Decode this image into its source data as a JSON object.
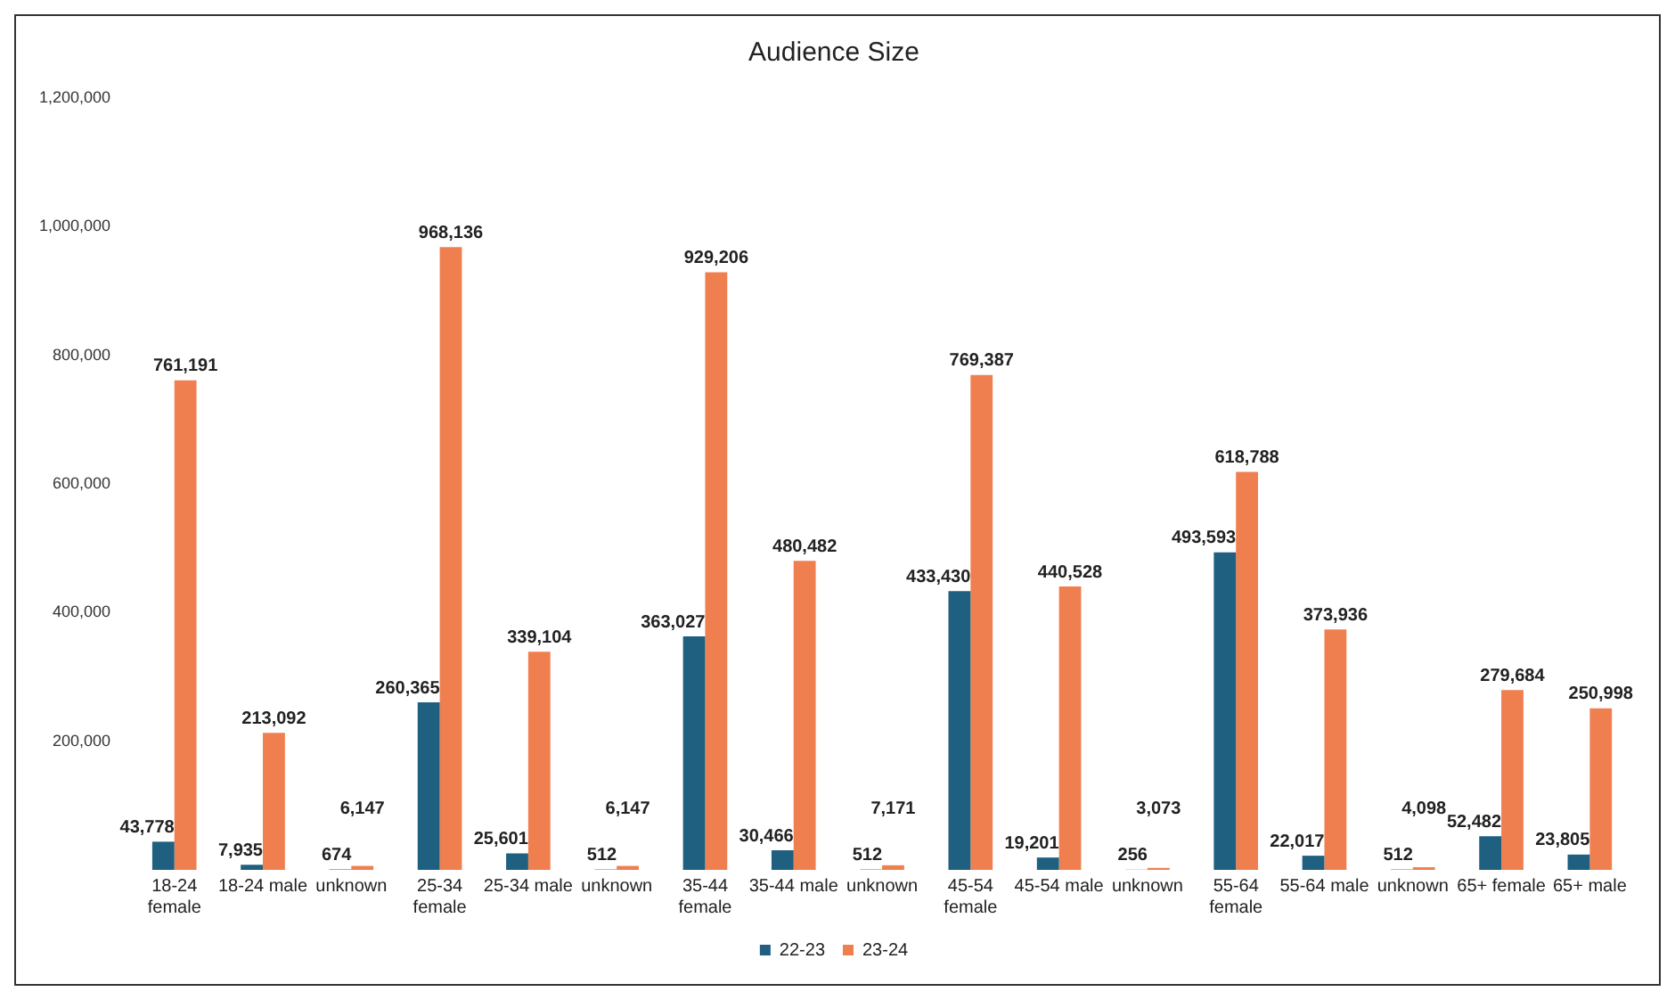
{
  "chart_data": {
    "type": "bar",
    "title": "Audience Size",
    "categories": [
      "18-24 female",
      "18-24 male",
      "unknown",
      "25-34 female",
      "25-34 male",
      "unknown",
      "35-44 female",
      "35-44 male",
      "unknown",
      "45-54 female",
      "45-54 male",
      "unknown",
      "55-64 female",
      "55-64 male",
      "unknown",
      "65+ female",
      "65+ male"
    ],
    "series": [
      {
        "name": "22-23",
        "color": "#1f5f80",
        "values": [
          43778,
          7935,
          674,
          260365,
          25601,
          512,
          363027,
          30466,
          512,
          433430,
          19201,
          256,
          493593,
          22017,
          512,
          52482,
          23805
        ],
        "value_labels": [
          "43,778",
          "7,935",
          "674",
          "260,365",
          "25,601",
          "512",
          "363,027",
          "30,466",
          "512",
          "433,430",
          "19,201",
          "256",
          "493,593",
          "22,017",
          "512",
          "52,482",
          "23,805"
        ]
      },
      {
        "name": "23-24",
        "color": "#f07f50",
        "values": [
          761191,
          213092,
          6147,
          968136,
          339104,
          6147,
          929206,
          480482,
          7171,
          769387,
          440528,
          3073,
          618788,
          373936,
          4098,
          279684,
          250998
        ],
        "value_labels": [
          "761,191",
          "213,092",
          "6,147",
          "968,136",
          "339,104",
          "6,147",
          "929,206",
          "480,482",
          "7,171",
          "769,387",
          "440,528",
          "3,073",
          "618,788",
          "373,936",
          "4,098",
          "279,684",
          "250,998"
        ]
      }
    ],
    "ylim": [
      0,
      1200000
    ],
    "yticks": [
      {
        "value": 200000,
        "label": "200,000"
      },
      {
        "value": 400000,
        "label": "400,000"
      },
      {
        "value": 600000,
        "label": "600,000"
      },
      {
        "value": 800000,
        "label": "800,000"
      },
      {
        "value": 1000000,
        "label": "1,000,000"
      },
      {
        "value": 1200000,
        "label": "1,200,000"
      }
    ],
    "grid": false,
    "legend": "bottom"
  }
}
